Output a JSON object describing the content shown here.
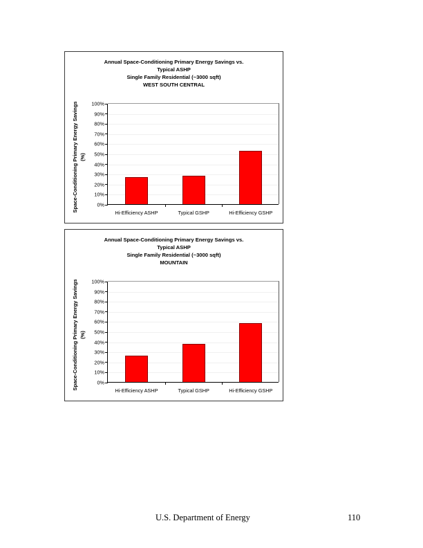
{
  "chart_data": [
    {
      "type": "bar",
      "title": "Annual Space-Conditioning Primary Energy Savings vs. Typical ASHP Single Family Residential (~3000 sqft) WEST SOUTH CENTRAL",
      "title_lines": [
        "Annual Space-Conditioning Primary Energy Savings vs.",
        "Typical ASHP",
        "Single Family Residential (~3000 sqft)",
        "WEST SOUTH CENTRAL"
      ],
      "ylabel_lines": [
        "Space-Conditioning Primary Energy Savings",
        "(%)"
      ],
      "ylabel": "Space-Conditioning Primary Energy Savings (%)",
      "xlabel": "",
      "categories": [
        "Hi-Efficiency ASHP",
        "Typical GSHP",
        "Hi-Efficiency GSHP"
      ],
      "values": [
        27,
        28,
        53
      ],
      "ylim": [
        0,
        100
      ],
      "yticks": [
        "0%",
        "10%",
        "20%",
        "30%",
        "40%",
        "50%",
        "60%",
        "70%",
        "80%",
        "90%",
        "100%"
      ],
      "grid": true,
      "legend": null,
      "bar_color": "#ff0000"
    },
    {
      "type": "bar",
      "title": "Annual Space-Conditioning Primary Energy Savings vs. Typical ASHP Single Family Residential (~3000 sqft) MOUNTAIN",
      "title_lines": [
        "Annual Space-Conditioning Primary Energy Savings vs.",
        "Typical ASHP",
        "Single Family Residential (~3000 sqft)",
        "MOUNTAIN"
      ],
      "ylabel_lines": [
        "Space-Conditioning Primary Energy Savings",
        "(%)"
      ],
      "ylabel": "Space-Conditioning Primary Energy Savings (%)",
      "xlabel": "",
      "categories": [
        "Hi-Efficiency ASHP",
        "Typical GSHP",
        "Hi-Efficiency GSHP"
      ],
      "values": [
        26,
        38,
        58
      ],
      "ylim": [
        0,
        100
      ],
      "yticks": [
        "0%",
        "10%",
        "20%",
        "30%",
        "40%",
        "50%",
        "60%",
        "70%",
        "80%",
        "90%",
        "100%"
      ],
      "grid": true,
      "legend": null,
      "bar_color": "#ff0000"
    }
  ],
  "footer": {
    "organization": "U.S. Department of Energy",
    "page_number": "110"
  }
}
